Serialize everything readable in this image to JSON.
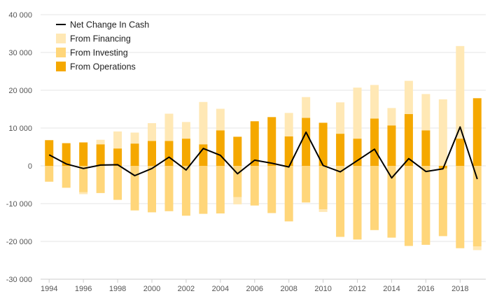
{
  "chart_data": {
    "type": "bar",
    "stacking": "diverging",
    "title": "",
    "xlabel": "",
    "ylabel": "",
    "ylim": [
      -30000,
      40000
    ],
    "yticks": [
      -30000,
      -20000,
      -10000,
      0,
      10000,
      20000,
      30000,
      40000
    ],
    "ytick_labels": [
      "-30 000",
      "-20 000",
      "-10 000",
      "0",
      "10 000",
      "20 000",
      "30 000",
      "40 000"
    ],
    "xtick_labels": [
      "1994",
      "1996",
      "1998",
      "2000",
      "2002",
      "2004",
      "2006",
      "2008",
      "2010",
      "2012",
      "2014",
      "2016",
      "2018"
    ],
    "grid": "horizontal",
    "legend_position": "top-left",
    "categories": [
      "1994",
      "1995",
      "1996",
      "1997",
      "1998",
      "1999",
      "2000",
      "2001",
      "2002",
      "2003",
      "2004",
      "2005",
      "2006",
      "2007",
      "2008",
      "2009",
      "2010",
      "2011",
      "2012",
      "2013",
      "2014",
      "2015",
      "2016",
      "2017",
      "2018",
      "2019"
    ],
    "series": [
      {
        "name": "From Operations",
        "type": "bar",
        "color": "#f5a800",
        "values": [
          6800,
          6000,
          6200,
          5700,
          4600,
          5900,
          6600,
          6600,
          7200,
          5700,
          9400,
          7700,
          11800,
          12900,
          7800,
          12700,
          11400,
          8500,
          7200,
          12500,
          10700,
          13700,
          9400,
          -700,
          7200,
          17900
        ]
      },
      {
        "name": "From Investing",
        "type": "bar",
        "color": "#ffd67a",
        "values": [
          -4200,
          -5800,
          -7000,
          -7200,
          -9000,
          -11800,
          -12300,
          -12000,
          -13200,
          -12700,
          -12600,
          -8300,
          -10500,
          -12500,
          -14700,
          -9700,
          -11500,
          -18800,
          -19500,
          -17000,
          -19000,
          -21200,
          -20900,
          -17900,
          -21800,
          -21300
        ]
      },
      {
        "name": "From Financing",
        "type": "bar",
        "color": "#ffe8b5",
        "values": [
          0,
          0,
          -500,
          1200,
          4500,
          2900,
          4700,
          7200,
          4400,
          11200,
          5700,
          -1900,
          0,
          0,
          6200,
          5500,
          -700,
          8300,
          13500,
          8900,
          4600,
          8800,
          9600,
          17600,
          24500,
          -1000
        ]
      },
      {
        "name": "Net Change In Cash",
        "type": "line",
        "color": "#000000",
        "values": [
          2900,
          500,
          -700,
          200,
          300,
          -2600,
          -700,
          2300,
          -1100,
          4600,
          2800,
          -2100,
          1500,
          700,
          -300,
          8900,
          100,
          -1600,
          1400,
          4400,
          -3200,
          1900,
          -1500,
          -800,
          10300,
          -3500
        ]
      }
    ]
  }
}
